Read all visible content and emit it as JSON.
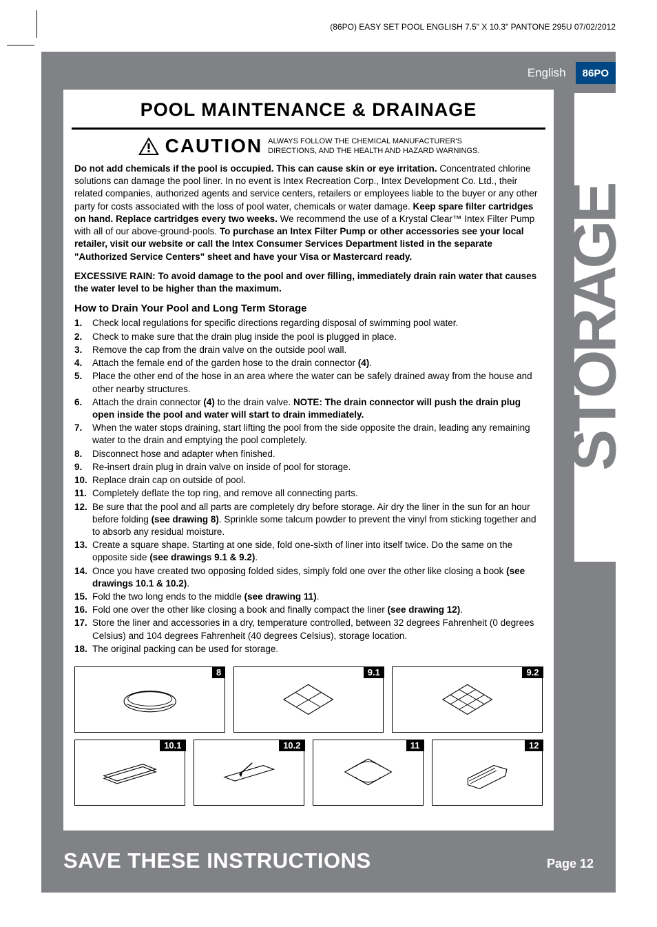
{
  "header_note": "(86PO)  EASY SET POOL  ENGLISH  7.5\" X 10.3\"  PANTONE 295U  07/02/2012",
  "language": "English",
  "code_badge": "86PO",
  "side_tab": "STORAGE",
  "section_title": "POOL MAINTENANCE & DRAINAGE",
  "caution": {
    "word": "CAUTION",
    "msg_line1": "ALWAYS FOLLOW THE CHEMICAL MANUFACTURER'S",
    "msg_line2": "DIRECTIONS, AND THE HEALTH AND HAZARD WARNINGS."
  },
  "intro": {
    "lead_bold": "Do not add chemicals if the pool is occupied. This can cause skin or eye irritation.",
    "p1a": "Concentrated chlorine solutions can damage the pool liner. In no event is Intex Recreation Corp., Intex Development Co. Ltd., their related companies, authorized agents and service centers, retailers or employees liable to the buyer or any other party for costs associated with the loss of pool water, chemicals or water damage. ",
    "p1b_bold": "Keep spare filter cartridges on hand. Replace cartridges every two weeks.",
    "p1c": " We recommend the use of a Krystal Clear™ Intex Filter Pump with all of our above-ground-pools. ",
    "p1d_bold": "To purchase an Intex Filter Pump or other accessories see your local retailer, visit our website or call the Intex Consumer Services Department listed in the separate \"Authorized Service Centers\" sheet and have your Visa or Mastercard ready."
  },
  "rain_bold": "EXCESSIVE RAIN: To avoid damage to the pool and over filling, immediately drain rain water that causes the water level to be higher than the maximum.",
  "howto_head": "How to Drain Your Pool and Long Term Storage",
  "steps": [
    {
      "n": "1.",
      "t": "Check local regulations for specific directions regarding disposal of swimming pool water."
    },
    {
      "n": "2.",
      "t": "Check to make sure that the drain plug inside the pool is plugged in place."
    },
    {
      "n": "3.",
      "t": "Remove the cap from the drain valve on the outside pool wall."
    },
    {
      "n": "4.",
      "t": "Attach the female end of the garden hose to the drain connector ",
      "b": "(4)",
      "t2": "."
    },
    {
      "n": "5.",
      "t": "Place the other end of the hose in an area where the water can be safely drained away from the house and other nearby structures."
    },
    {
      "n": "6.",
      "t": "Attach the drain connector ",
      "b": "(4)",
      "t2": " to the drain valve. ",
      "b2": "NOTE: The drain connector will push the drain plug open inside the pool and water will start to drain immediately."
    },
    {
      "n": "7.",
      "t": "When the water stops draining, start lifting the pool from the side opposite the drain, leading any remaining water to the drain and emptying the pool completely."
    },
    {
      "n": "8.",
      "t": "Disconnect hose and adapter when finished."
    },
    {
      "n": "9.",
      "t": "Re-insert drain plug in drain valve on inside of pool for storage."
    },
    {
      "n": "10.",
      "t": "Replace drain cap on outside of pool."
    },
    {
      "n": "11.",
      "t": "Completely deflate the top ring, and remove all connecting parts."
    },
    {
      "n": "12.",
      "t": "Be sure that the pool and all parts are completely dry before storage. Air dry the liner in the sun for an hour before folding ",
      "b": "(see drawing 8)",
      "t2": ". Sprinkle some talcum powder to prevent the vinyl from sticking together and to absorb any residual moisture."
    },
    {
      "n": "13.",
      "t": "Create a square shape. Starting at one side, fold one-sixth of liner into itself twice. Do the same on the opposite side ",
      "b": "(see drawings 9.1 & 9.2)",
      "t2": "."
    },
    {
      "n": "14.",
      "t": "Once you have created two opposing folded sides, simply fold one over the other like closing a book ",
      "b": "(see drawings 10.1 & 10.2)",
      "t2": "."
    },
    {
      "n": "15.",
      "t": "Fold the two long ends to the middle ",
      "b": "(see drawing 11)",
      "t2": "."
    },
    {
      "n": "16.",
      "t": "Fold one over the other like closing a book and finally compact the liner ",
      "b": "(see drawing 12)",
      "t2": "."
    },
    {
      "n": "17.",
      "t": "Store the liner and accessories in a dry, temperature controlled, between 32 degrees Fahrenheit (0 degrees Celsius) and 104 degrees Fahrenheit (40 degrees Celsius), storage location."
    },
    {
      "n": "18.",
      "t": "The original packing can be used for storage."
    }
  ],
  "drawings": {
    "row1": [
      "8",
      "9.1",
      "9.2"
    ],
    "row2": [
      "10.1",
      "10.2",
      "11",
      "12"
    ]
  },
  "footer": {
    "left": "SAVE THESE INSTRUCTIONS",
    "right": "Page 12"
  },
  "colors": {
    "page_bg": "#808285",
    "badge_bg": "#004785",
    "text": "#000000",
    "white": "#ffffff"
  }
}
